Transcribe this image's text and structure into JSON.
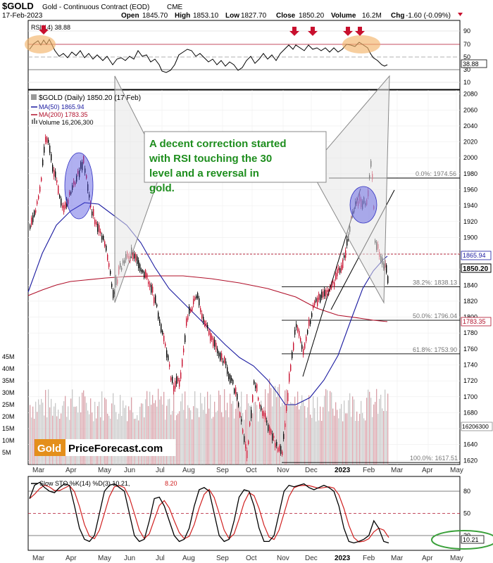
{
  "header": {
    "symbol": "$GOLD",
    "name": "Gold - Continuous Contract (EOD)",
    "exchange": "CME",
    "date": "17-Feb-2023",
    "open_label": "Open",
    "open": "1845.70",
    "high_label": "High",
    "high": "1853.10",
    "low_label": "Low",
    "low": "1827.70",
    "close_label": "Close",
    "close": "1850.20",
    "volume_label": "Volume",
    "volume": "16.2M",
    "chg_label": "Chg",
    "chg": "-1.60 (-0.09%)"
  },
  "rsi_panel": {
    "label": "RSI(14) 38.88",
    "value_badge": "38.88",
    "ticks": [
      "90",
      "70",
      "50",
      "30",
      "10"
    ]
  },
  "price_panel": {
    "title": "$GOLD (Daily) 1850.20 (17 Feb)",
    "legend": [
      {
        "text": "MA(50) 1865.94",
        "color": "#1a1aa0"
      },
      {
        "text": "MA(200) 1783.35",
        "color": "#b0102a"
      },
      {
        "text": "Volume 16,206,300",
        "color": "#555555"
      }
    ],
    "price_ticks": [
      "2080",
      "2060",
      "2040",
      "2020",
      "2000",
      "1980",
      "1960",
      "1940",
      "1920",
      "1900",
      "1880",
      "1860",
      "1840",
      "1820",
      "1800",
      "1780",
      "1760",
      "1740",
      "1720",
      "1700",
      "1680",
      "1660",
      "1640",
      "1620"
    ],
    "volume_ticks": [
      "45M",
      "40M",
      "35M",
      "30M",
      "25M",
      "20M",
      "15M",
      "10M",
      "5M"
    ],
    "badges": {
      "ma50": "1865.94",
      "close": "1850.20",
      "ma200": "1783.35",
      "volume": "16206300"
    },
    "fib_labels": [
      "0.0%: 1974.56",
      "38.2%: 1838.13",
      "50.0%: 1796.04",
      "61.8%: 1753.90",
      "100.0%: 1617.51"
    ],
    "annotation": "A decent correction started with RSI touching the 30 level and a reversal in gold.",
    "logo_word": "Gold",
    "logo_rest": "PriceForecast.com"
  },
  "sto_panel": {
    "label_prefix": "Slow STO %K(14) %D(3) 10.21,",
    "label_d": "8.20",
    "ticks": [
      "80",
      "50",
      "20"
    ],
    "value_badge": "10.21"
  },
  "x_axis": {
    "months": [
      "Mar",
      "Apr",
      "May",
      "Jun",
      "Jul",
      "Aug",
      "Sep",
      "Oct",
      "Nov",
      "Dec",
      "2023",
      "Feb",
      "Mar",
      "Apr",
      "May"
    ]
  },
  "colors": {
    "annotation_text": "#1e8e1e",
    "arrow": "#c8102e",
    "ma50": "#1a1aa0",
    "ma200": "#b0102a",
    "ellipse_blue": "#5050e0",
    "ellipse_orange": "#f2b46a",
    "sto_ellipse": "#3aa03a"
  },
  "chart_data": [
    {
      "type": "line",
      "title": "RSI(14)",
      "ylim": [
        10,
        90
      ],
      "reference_lines": [
        70,
        50,
        30
      ],
      "last_value": 38.88
    },
    {
      "type": "candlestick",
      "title": "$GOLD (Daily)",
      "ylim": [
        1615,
        2085
      ],
      "x": [
        "Mar",
        "Apr",
        "May",
        "Jun",
        "Jul",
        "Aug",
        "Sep",
        "Oct",
        "Nov",
        "Dec",
        "Jan",
        "Feb"
      ],
      "series": [
        {
          "name": "Close (approx. monthly)",
          "values": [
            1950,
            1940,
            1850,
            1810,
            1760,
            1720,
            1670,
            1640,
            1760,
            1810,
            1930,
            1850
          ]
        },
        {
          "name": "MA(50)",
          "values": [
            1900,
            1940,
            1900,
            1860,
            1820,
            1780,
            1740,
            1700,
            1660,
            1700,
            1800,
            1865.94
          ]
        },
        {
          "name": "MA(200)",
          "values": [
            1820,
            1845,
            1860,
            1862,
            1855,
            1845,
            1830,
            1815,
            1800,
            1790,
            1784,
            1783.35
          ]
        }
      ],
      "fibonacci": [
        {
          "label": "0.0%",
          "value": 1974.56
        },
        {
          "label": "38.2%",
          "value": 1838.13
        },
        {
          "label": "50.0%",
          "value": 1796.04
        },
        {
          "label": "61.8%",
          "value": 1753.9
        },
        {
          "label": "100.0%",
          "value": 1617.51
        }
      ],
      "volume_ylim": [
        0,
        45000000
      ],
      "last_volume": 16206300
    },
    {
      "type": "line",
      "title": "Slow STO %K(14) %D(3)",
      "ylim": [
        0,
        100
      ],
      "reference_lines": [
        80,
        50,
        20
      ],
      "series": [
        {
          "name": "%K",
          "last": 10.21
        },
        {
          "name": "%D",
          "last": 8.2
        }
      ]
    }
  ]
}
